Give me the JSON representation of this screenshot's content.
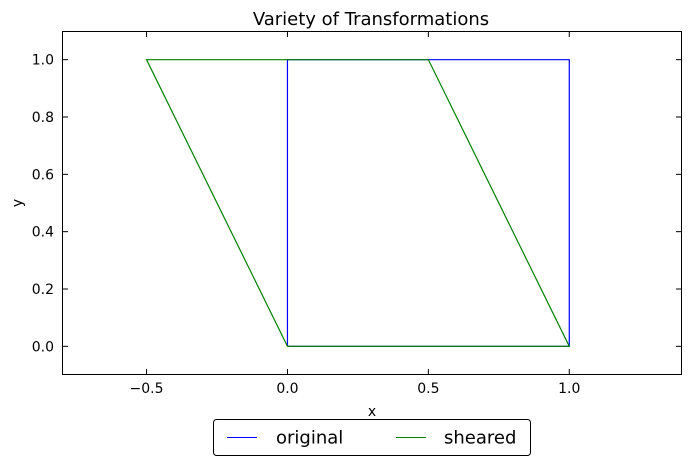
{
  "chart_data": {
    "type": "line",
    "title": "Variety of Transformations",
    "xlabel": "x",
    "ylabel": "y",
    "xlim": [
      -0.8,
      1.4
    ],
    "ylim": [
      -0.1,
      1.1
    ],
    "xticks": [
      -0.5,
      0.0,
      0.5,
      1.0
    ],
    "xtick_labels": [
      "−0.5",
      "0.0",
      "0.5",
      "1.0"
    ],
    "yticks": [
      0.0,
      0.2,
      0.4,
      0.6,
      0.8,
      1.0
    ],
    "ytick_labels": [
      "0.0",
      "0.2",
      "0.4",
      "0.6",
      "0.8",
      "1.0"
    ],
    "grid": false,
    "legend_position": "bottom-center",
    "series": [
      {
        "name": "original",
        "color": "#0000ff",
        "x": [
          0,
          1,
          1,
          0,
          0
        ],
        "y": [
          0,
          0,
          1,
          1,
          0
        ]
      },
      {
        "name": "sheared",
        "color": "#008000",
        "x": [
          0,
          1,
          0.5,
          -0.5,
          0
        ],
        "y": [
          0,
          0,
          1,
          1,
          0
        ]
      }
    ]
  }
}
